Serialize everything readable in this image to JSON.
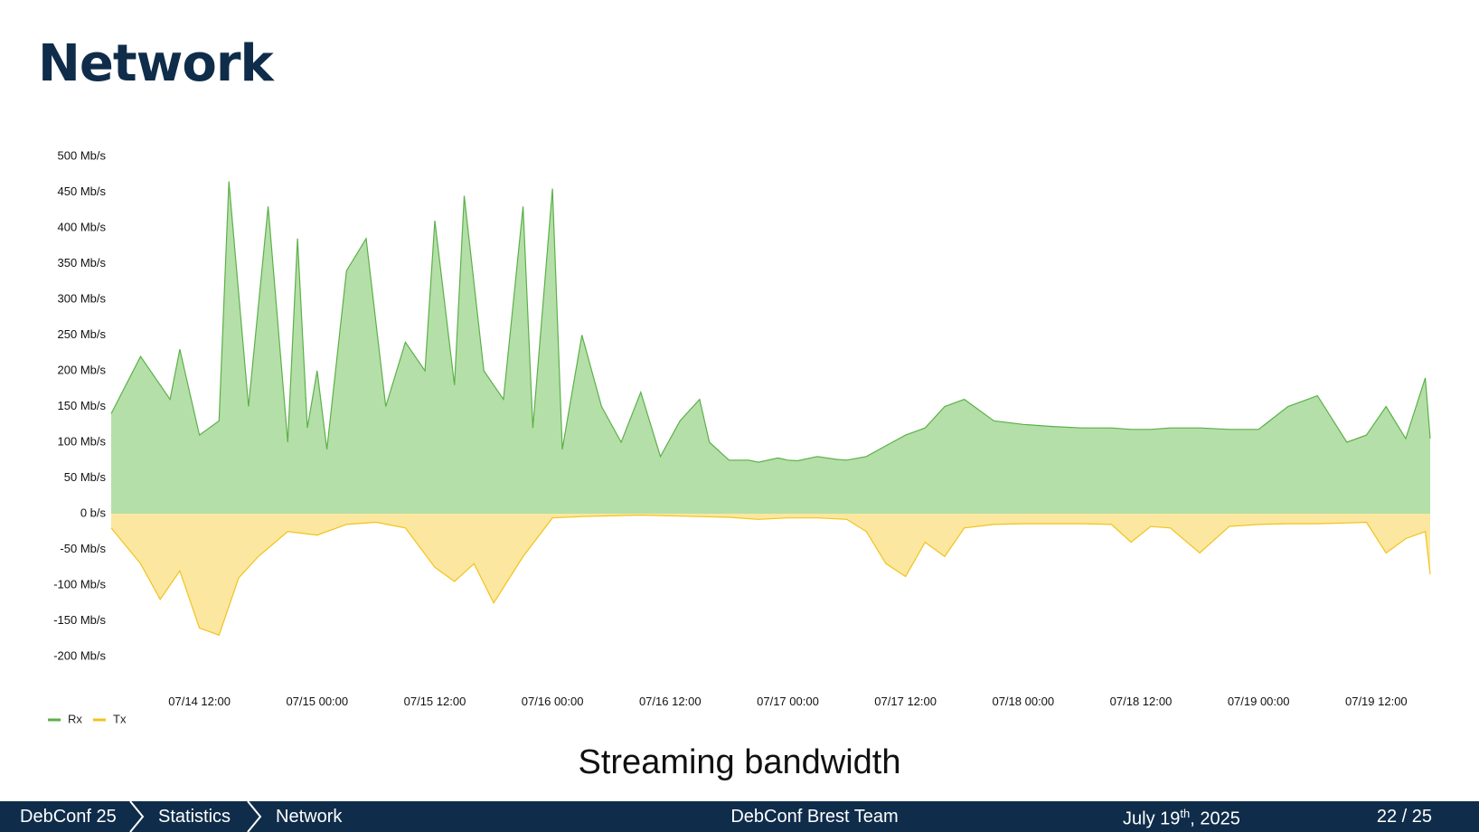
{
  "slide": {
    "title": "Network",
    "caption": "Streaming bandwidth"
  },
  "footer": {
    "breadcrumb": [
      "DebConf 25",
      "Statistics",
      "Network"
    ],
    "team": "DebConf Brest Team",
    "date_prefix": "July 19",
    "date_sup": "th",
    "date_suffix": ", 2025",
    "page": "22 / 25"
  },
  "colors": {
    "title": "#0f2d4a",
    "footer_bg": "#0f2d4a",
    "rx_line": "#5cb04a",
    "rx_fill": "#b5dfa8",
    "tx_line": "#f2c31c",
    "tx_fill": "#fbe7a0"
  },
  "chart_data": {
    "type": "area",
    "title": "",
    "xlabel": "",
    "ylabel": "",
    "ylim": [
      -200,
      500
    ],
    "xlim": [
      "07/14 03:00",
      "07/19 17:30"
    ],
    "yticks": [
      "500 Mb/s",
      "450 Mb/s",
      "400 Mb/s",
      "350 Mb/s",
      "300 Mb/s",
      "250 Mb/s",
      "200 Mb/s",
      "150 Mb/s",
      "100 Mb/s",
      "50 Mb/s",
      "0 b/s",
      "-50 Mb/s",
      "-100 Mb/s",
      "-150 Mb/s",
      "-200 Mb/s"
    ],
    "ytick_values": [
      500,
      450,
      400,
      350,
      300,
      250,
      200,
      150,
      100,
      50,
      0,
      -50,
      -100,
      -150,
      -200
    ],
    "xticks": [
      "07/14 12:00",
      "07/15 00:00",
      "07/15 12:00",
      "07/16 00:00",
      "07/16 12:00",
      "07/17 00:00",
      "07/17 12:00",
      "07/18 00:00",
      "07/18 12:00",
      "07/19 00:00",
      "07/19 12:00"
    ],
    "xtick_values": [
      "07/14 12:00",
      "07/15 00:00",
      "07/15 12:00",
      "07/16 00:00",
      "07/16 12:00",
      "07/17 00:00",
      "07/17 12:00",
      "07/18 00:00",
      "07/18 12:00",
      "07/19 00:00",
      "07/19 12:00"
    ],
    "legend": "bottom-left",
    "grid": false,
    "series": [
      {
        "name": "Rx",
        "unit": "Mb/s",
        "x": [
          "07/14 03:00",
          "07/14 06:00",
          "07/14 09:00",
          "07/14 10:00",
          "07/14 12:00",
          "07/14 14:00",
          "07/14 15:00",
          "07/14 17:00",
          "07/14 19:00",
          "07/14 21:00",
          "07/14 22:00",
          "07/14 23:00",
          "07/15 00:00",
          "07/15 01:00",
          "07/15 03:00",
          "07/15 05:00",
          "07/15 07:00",
          "07/15 09:00",
          "07/15 11:00",
          "07/15 12:00",
          "07/15 14:00",
          "07/15 15:00",
          "07/15 17:00",
          "07/15 19:00",
          "07/15 21:00",
          "07/15 22:00",
          "07/16 00:00",
          "07/16 01:00",
          "07/16 03:00",
          "07/16 05:00",
          "07/16 07:00",
          "07/16 09:00",
          "07/16 11:00",
          "07/16 13:00",
          "07/16 15:00",
          "07/16 16:00",
          "07/16 18:00",
          "07/16 20:00",
          "07/16 21:00",
          "07/16 23:00",
          "07/17 00:00",
          "07/17 01:00",
          "07/17 03:00",
          "07/17 05:00",
          "07/17 06:00",
          "07/17 08:00",
          "07/17 10:00",
          "07/17 12:00",
          "07/17 14:00",
          "07/17 16:00",
          "07/17 18:00",
          "07/17 21:00",
          "07/18 00:00",
          "07/18 03:00",
          "07/18 06:00",
          "07/18 09:00",
          "07/18 11:00",
          "07/18 13:00",
          "07/18 15:00",
          "07/18 18:00",
          "07/18 21:00",
          "07/19 00:00",
          "07/19 03:00",
          "07/19 06:00",
          "07/19 09:00",
          "07/19 11:00",
          "07/19 13:00",
          "07/19 15:00",
          "07/19 17:00",
          "07/19 17:30"
        ],
        "y": [
          140,
          220,
          160,
          230,
          110,
          130,
          465,
          150,
          430,
          100,
          385,
          120,
          200,
          90,
          340,
          385,
          150,
          240,
          200,
          410,
          180,
          445,
          200,
          160,
          430,
          120,
          455,
          90,
          250,
          150,
          100,
          170,
          80,
          130,
          160,
          100,
          75,
          75,
          72,
          78,
          75,
          74,
          80,
          76,
          75,
          80,
          95,
          110,
          120,
          150,
          160,
          130,
          125,
          122,
          120,
          120,
          118,
          118,
          120,
          120,
          118,
          118,
          150,
          165,
          100,
          110,
          150,
          105,
          190,
          105
        ]
      },
      {
        "name": "Tx",
        "unit": "Mb/s",
        "x": [
          "07/14 03:00",
          "07/14 06:00",
          "07/14 08:00",
          "07/14 10:00",
          "07/14 12:00",
          "07/14 14:00",
          "07/14 16:00",
          "07/14 18:00",
          "07/14 21:00",
          "07/15 00:00",
          "07/15 03:00",
          "07/15 06:00",
          "07/15 09:00",
          "07/15 12:00",
          "07/15 14:00",
          "07/15 16:00",
          "07/15 18:00",
          "07/15 21:00",
          "07/16 00:00",
          "07/16 03:00",
          "07/16 06:00",
          "07/16 09:00",
          "07/16 12:00",
          "07/16 15:00",
          "07/16 18:00",
          "07/16 21:00",
          "07/17 00:00",
          "07/17 03:00",
          "07/17 06:00",
          "07/17 08:00",
          "07/17 10:00",
          "07/17 12:00",
          "07/17 14:00",
          "07/17 16:00",
          "07/17 18:00",
          "07/17 21:00",
          "07/18 00:00",
          "07/18 03:00",
          "07/18 06:00",
          "07/18 09:00",
          "07/18 11:00",
          "07/18 13:00",
          "07/18 15:00",
          "07/18 18:00",
          "07/18 21:00",
          "07/19 00:00",
          "07/19 03:00",
          "07/19 06:00",
          "07/19 09:00",
          "07/19 11:00",
          "07/19 13:00",
          "07/19 15:00",
          "07/19 17:00",
          "07/19 17:30"
        ],
        "y": [
          -20,
          -70,
          -120,
          -80,
          -160,
          -170,
          -90,
          -60,
          -25,
          -30,
          -15,
          -12,
          -20,
          -75,
          -95,
          -70,
          -125,
          -60,
          -6,
          -4,
          -3,
          -2,
          -3,
          -4,
          -5,
          -8,
          -6,
          -6,
          -8,
          -25,
          -70,
          -88,
          -40,
          -60,
          -20,
          -15,
          -14,
          -14,
          -14,
          -15,
          -40,
          -18,
          -20,
          -55,
          -18,
          -15,
          -14,
          -14,
          -13,
          -12,
          -55,
          -35,
          -25,
          -85
        ]
      }
    ]
  }
}
